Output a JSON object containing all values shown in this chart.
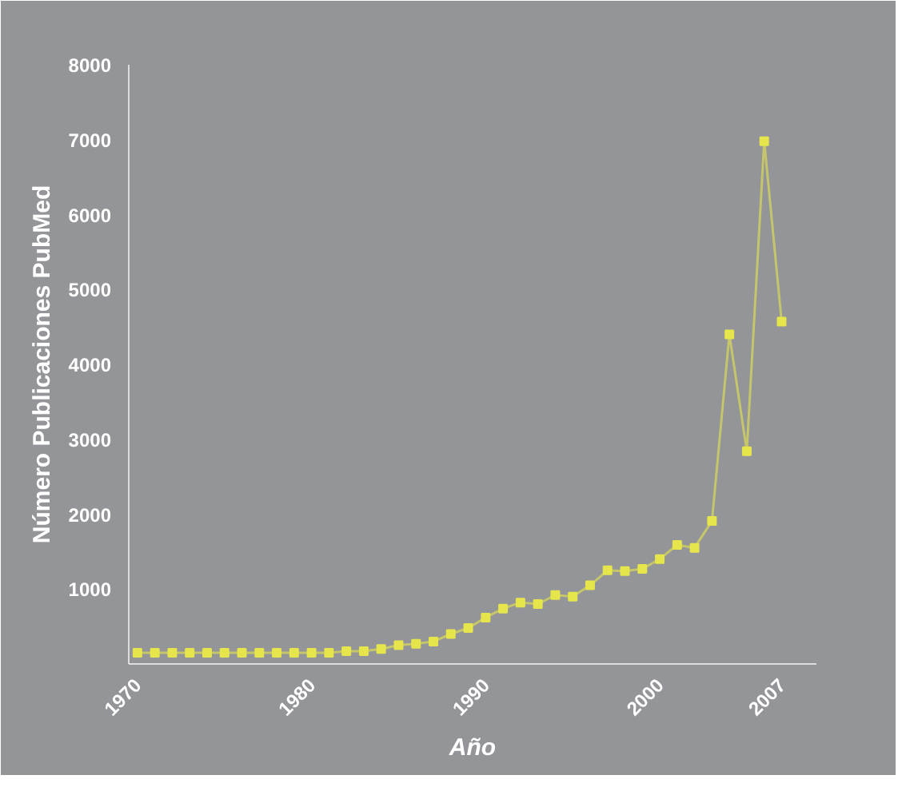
{
  "chart_data": {
    "type": "line",
    "xlabel": "Año",
    "ylabel": "Número Publicaciones PubMed",
    "x": [
      1970,
      1971,
      1972,
      1973,
      1974,
      1975,
      1976,
      1977,
      1978,
      1979,
      1980,
      1981,
      1982,
      1983,
      1984,
      1985,
      1986,
      1987,
      1988,
      1989,
      1990,
      1991,
      1992,
      1993,
      1994,
      1995,
      1996,
      1997,
      1998,
      1999,
      2000,
      2001,
      2002,
      2003,
      2004,
      2005,
      2006,
      2007
    ],
    "series": [
      {
        "color": "#e6e64c",
        "values": [
          150,
          150,
          150,
          150,
          150,
          150,
          150,
          150,
          150,
          150,
          150,
          150,
          170,
          170,
          200,
          250,
          270,
          300,
          400,
          480,
          620,
          740,
          820,
          800,
          920,
          900,
          1050,
          1250,
          1240,
          1270,
          1400,
          1590,
          1550,
          1910,
          4400,
          2840,
          6980,
          4570
        ]
      }
    ],
    "xlim": [
      1969.5,
      2009
    ],
    "ylim": [
      0,
      8000
    ],
    "xticks": [
      1970,
      1980,
      1990,
      2000,
      2007
    ],
    "yticks": [
      {
        "value": 0,
        "label": null
      },
      1000,
      2000,
      3000,
      4000,
      5000,
      6000,
      7000,
      8000
    ],
    "marker": "square",
    "grid": false
  }
}
